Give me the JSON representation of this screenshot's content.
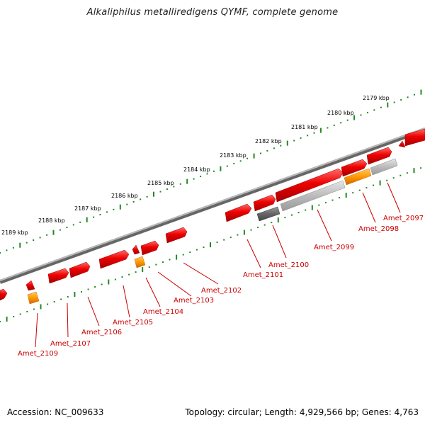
{
  "title": "Alkaliphilus metalliredigens QYMF, complete genome",
  "footer": {
    "accession": "Accession: NC_009633",
    "info": "Topology: circular; Length: 4,929,566 bp; Genes: 4,763"
  },
  "colors": {
    "gene_red": "#ee0000",
    "gene_orange": "#ff9900",
    "gene_dark_gray": "#666666",
    "gene_light_gray": "#bbbbbb",
    "backbone": "#888888",
    "tick_green": "#228822",
    "label_red": "#cc0000"
  },
  "scale_labels": [
    "2179 kbp",
    "2180 kbp",
    "2181 kbp",
    "2182 kbp",
    "2183 kbp",
    "2184 kbp",
    "2185 kbp",
    "2186 kbp",
    "2187 kbp",
    "2188 kbp",
    "2189 kbp"
  ],
  "gene_labels": [
    "Amet_2097",
    "Amet_2098",
    "Amet_2099",
    "Amet_2100",
    "Amet_2101",
    "Amet_2102",
    "Amet_2103",
    "Amet_2104",
    "Amet_2105",
    "Amet_2106",
    "Amet_2107",
    "Amet_2109"
  ]
}
